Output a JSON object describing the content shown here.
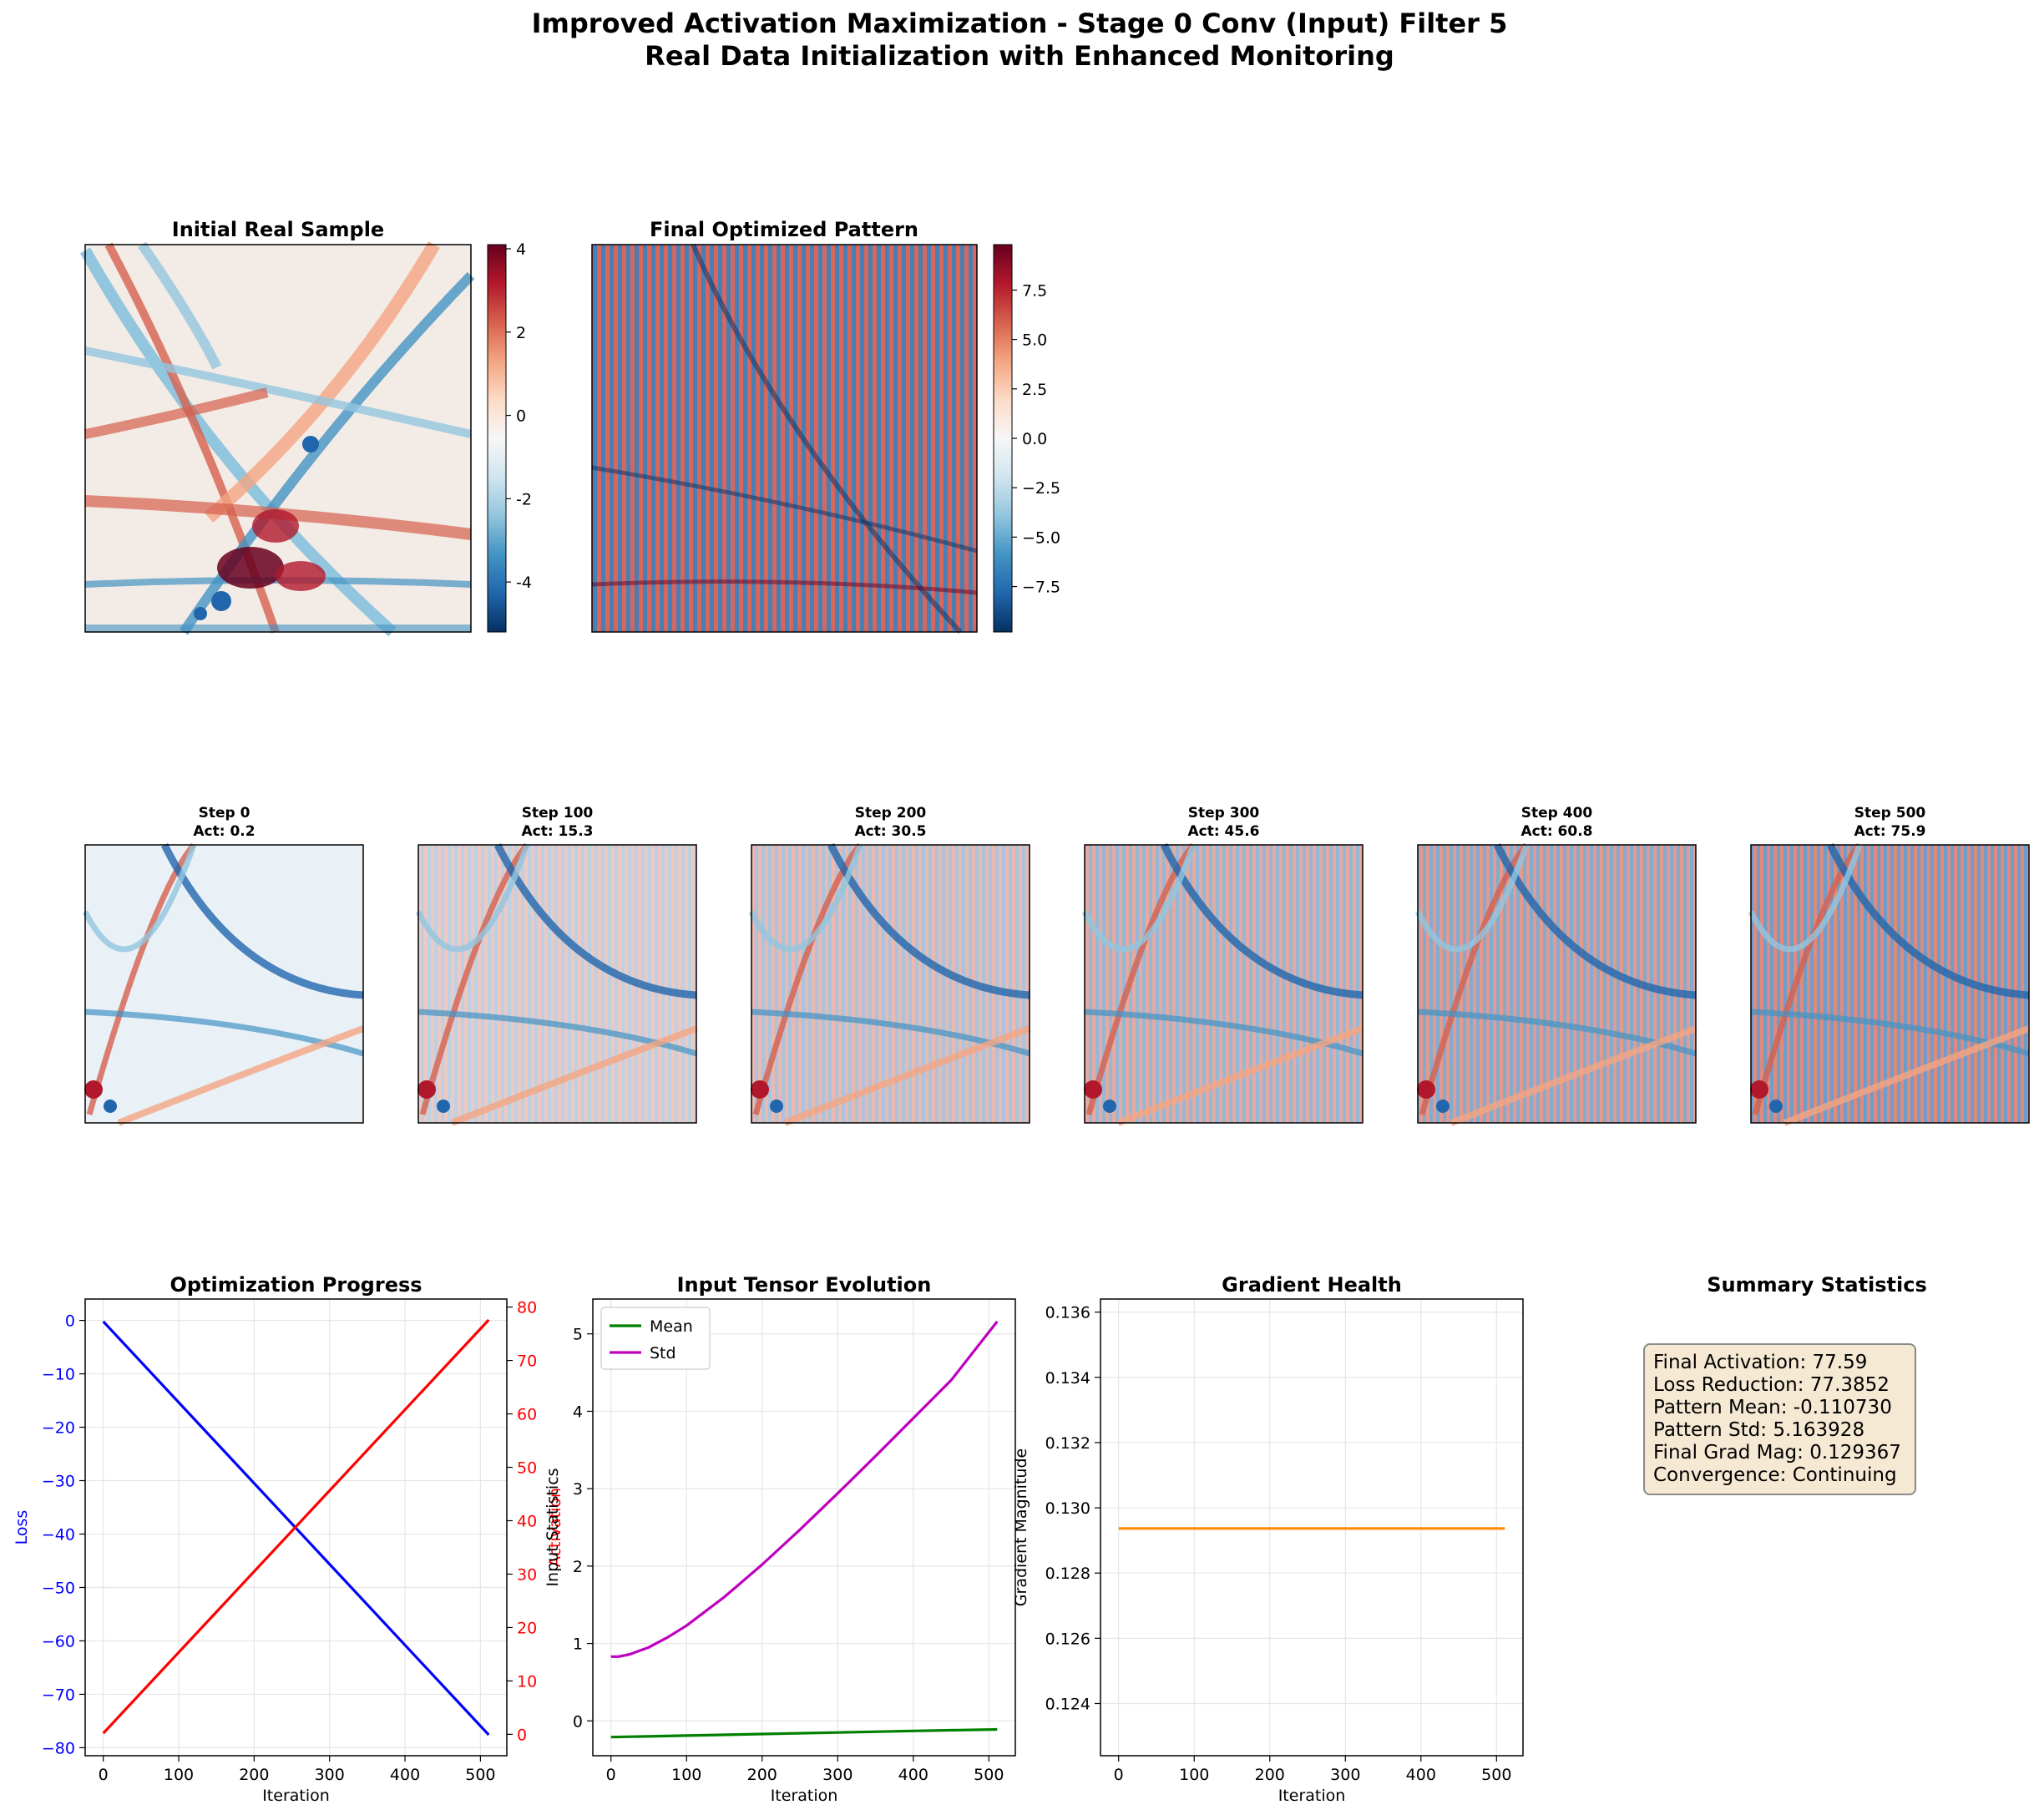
{
  "figure": {
    "title_line1": "Improved Activation Maximization - Stage 0 Conv (Input) Filter 5",
    "title_line2": "Real Data Initialization with Enhanced Monitoring"
  },
  "panels": {
    "initial": {
      "title": "Initial Real Sample",
      "colorbar_ticks": [
        4,
        2,
        0,
        -2,
        -4
      ],
      "vmin": -5.2,
      "vmax": 4.1
    },
    "final": {
      "title": "Final Optimized Pattern",
      "colorbar_ticks": [
        "7.5",
        "5.0",
        "2.5",
        "0.0",
        "−2.5",
        "−5.0",
        "−7.5"
      ],
      "vmin": -9.8,
      "vmax": 9.8
    },
    "steps": [
      {
        "title": "Step 0",
        "act": "Act: 0.2"
      },
      {
        "title": "Step 100",
        "act": "Act: 15.3"
      },
      {
        "title": "Step 200",
        "act": "Act: 30.5"
      },
      {
        "title": "Step 300",
        "act": "Act: 45.6"
      },
      {
        "title": "Step 400",
        "act": "Act: 60.8"
      },
      {
        "title": "Step 500",
        "act": "Act: 75.9"
      }
    ]
  },
  "colormap": [
    "#053061",
    "#2166ac",
    "#4393c3",
    "#92c5de",
    "#d1e5f0",
    "#f7f7f7",
    "#fddbc7",
    "#f4a582",
    "#d6604d",
    "#b2182b",
    "#67001f"
  ],
  "colors": {
    "loss": "#0000ff",
    "activation": "#ff0000",
    "mean": "#008000",
    "std": "#bf00bf",
    "grad": "#ff8c00",
    "summary_bg": "#f5e9d3"
  },
  "chart_data": [
    {
      "type": "line",
      "title": "Optimization Progress",
      "xlabel": "Iteration",
      "ylabel": "Loss",
      "ylabel_right": "Activation",
      "xlim": [
        -24,
        535
      ],
      "ylim": [
        -81.5,
        4
      ],
      "ylim_right": [
        -4,
        81.5
      ],
      "xticks": [
        0,
        100,
        200,
        300,
        400,
        500
      ],
      "yticks": [
        0,
        -10,
        -20,
        -30,
        -40,
        -50,
        -60,
        -70,
        -80
      ],
      "yticks_right": [
        0,
        10,
        20,
        30,
        40,
        50,
        60,
        70,
        80
      ],
      "grid": true,
      "series": [
        {
          "axis": "left",
          "x": [
            0,
            511
          ],
          "y": [
            -0.2,
            -77.6
          ]
        },
        {
          "axis": "right",
          "x": [
            0,
            511
          ],
          "y": [
            0.2,
            77.6
          ]
        }
      ]
    },
    {
      "type": "line",
      "title": "Input Tensor Evolution",
      "xlabel": "Iteration",
      "ylabel": "Input Statistics",
      "xlim": [
        -24,
        535
      ],
      "ylim": [
        -0.45,
        5.45
      ],
      "xticks": [
        0,
        100,
        200,
        300,
        400,
        500
      ],
      "yticks": [
        0,
        1,
        2,
        3,
        4,
        5
      ],
      "grid": true,
      "legend": "top-left",
      "series": [
        {
          "name": "Mean",
          "x": [
            0,
            100,
            200,
            300,
            400,
            511
          ],
          "y": [
            -0.21,
            -0.19,
            -0.17,
            -0.15,
            -0.13,
            -0.11
          ]
        },
        {
          "name": "Std",
          "x": [
            0,
            10,
            25,
            50,
            75,
            100,
            150,
            200,
            250,
            300,
            350,
            400,
            450,
            511
          ],
          "y": [
            0.83,
            0.83,
            0.86,
            0.95,
            1.08,
            1.23,
            1.6,
            2.02,
            2.47,
            2.94,
            3.42,
            3.91,
            4.4,
            5.16
          ]
        }
      ]
    },
    {
      "type": "line",
      "title": "Gradient Health",
      "xlabel": "Iteration",
      "ylabel": "Gradient Magnitude",
      "xlim": [
        -24,
        535
      ],
      "ylim": [
        0.1224,
        0.1364
      ],
      "xticks": [
        0,
        100,
        200,
        300,
        400,
        500
      ],
      "yticks": [
        "0.124",
        "0.126",
        "0.128",
        "0.130",
        "0.132",
        "0.134",
        "0.136"
      ],
      "grid": true,
      "series": [
        {
          "x": [
            0,
            511
          ],
          "y": [
            0.129367,
            0.129367
          ]
        }
      ]
    }
  ],
  "summary": {
    "title": "Summary Statistics",
    "lines": [
      "Final Activation: 77.59",
      "Loss Reduction: 77.3852",
      "Pattern Mean: -0.110730",
      "Pattern Std: 5.163928",
      "Final Grad Mag: 0.129367",
      "Convergence: Continuing"
    ]
  }
}
